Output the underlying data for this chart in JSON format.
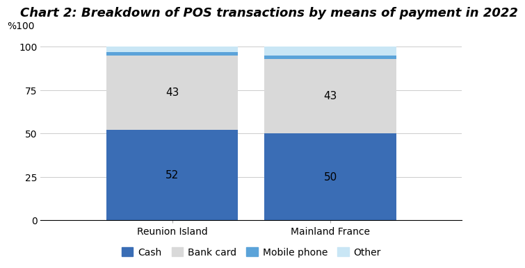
{
  "title": "Chart 2: Breakdown of POS transactions by means of payment in 2022",
  "categories": [
    "Reunion Island",
    "Mainland France"
  ],
  "segments": [
    "Cash",
    "Bank card",
    "Mobile phone",
    "Other"
  ],
  "values": {
    "Reunion Island": [
      52,
      43,
      2,
      3
    ],
    "Mainland France": [
      50,
      43,
      2,
      5
    ]
  },
  "colors": {
    "Cash": "#3A6DB5",
    "Bank card": "#D9D9D9",
    "Mobile phone": "#5BA3D9",
    "Other": "#C9E6F5"
  },
  "ylabel": "%100",
  "yticks": [
    0,
    25,
    50,
    75,
    100
  ],
  "ylim": [
    0,
    105
  ],
  "bar_width": 0.25,
  "title_fontsize": 13,
  "label_fontsize": 11,
  "tick_fontsize": 10,
  "legend_fontsize": 10,
  "bar_labels": {
    "Cash": {
      "Reunion Island": "52",
      "Mainland France": "50"
    },
    "Bank card": {
      "Reunion Island": "43",
      "Mainland France": "43"
    }
  },
  "background_color": "#FFFFFF",
  "x_positions": [
    0.35,
    0.65
  ]
}
